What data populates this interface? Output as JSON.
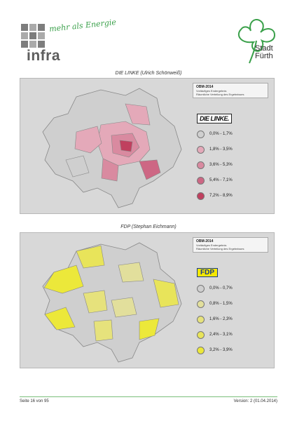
{
  "header": {
    "infra_slogan": "mehr als Energie",
    "infra_name": "infra",
    "city_line1": "Stadt",
    "city_line2": "Fürth"
  },
  "maps": [
    {
      "caption": "DIE LINKE (Ulrich Schönweiß)",
      "legend_title": "OBM-2014",
      "legend_subtitle": "Vorläufiges Endergebnis",
      "legend_note": "Räumliche Verteilung des Ergebnisses",
      "party_label": "DIE LINKE.",
      "ranges": [
        "0,0% - 1,7%",
        "1,8% - 3,5%",
        "3,6% - 5,3%",
        "5,4% - 7,1%",
        "7,2% - 8,9%"
      ],
      "colors": [
        "#cfcfcf",
        "#e4a9b9",
        "#d98aa0",
        "#cd6784",
        "#c0405f"
      ]
    },
    {
      "caption": "FDP (Stephan Eichmann)",
      "legend_title": "OBM-2014",
      "legend_subtitle": "Vorläufiges Endergebnis",
      "legend_note": "Räumliche Verteilung des Ergebnisses",
      "party_label": "FDP",
      "ranges": [
        "0,0% - 0,7%",
        "0,8% - 1,5%",
        "1,6% - 2,3%",
        "2,4% - 3,1%",
        "3,2% - 3,9%"
      ],
      "colors": [
        "#cfcfcf",
        "#e2df9c",
        "#e6e27c",
        "#e8e45a",
        "#ece83a"
      ]
    }
  ],
  "footer": {
    "page": "Seite 16 von 95",
    "version": "Version: 2 (01.04.2014)"
  }
}
